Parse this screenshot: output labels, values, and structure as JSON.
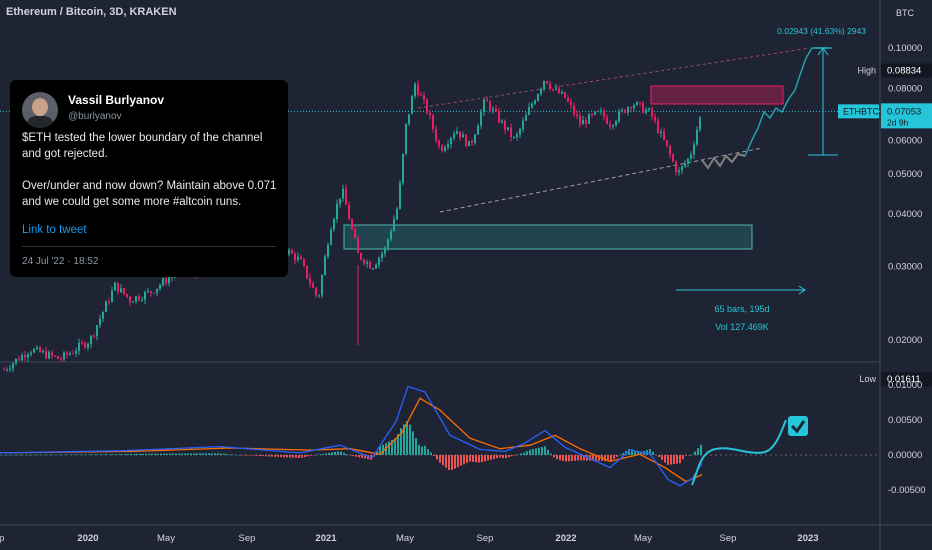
{
  "header": {
    "title": "Ethereum / Bitcoin, 3D, KRAKEN"
  },
  "tweet": {
    "name": "Vassil Burlyanov",
    "handle": "@burlyanov",
    "paragraph1": "$ETH tested the lower boundary of the channel and got rejected.",
    "paragraph2": "Over/under and now down? Maintain above 0.071 and we could get some more #altcoin runs.",
    "link": "Link to tweet",
    "date": "24 Jul '22 · 18:52"
  },
  "chart_data": [
    {
      "type": "candlestick",
      "currency": "BTC",
      "y_ticks": [
        "0.10000",
        "0.08000",
        "0.06000",
        "0.05000",
        "0.04000",
        "0.03000",
        "0.02000"
      ],
      "y_tick_values": [
        0.1,
        0.08,
        0.06,
        0.05,
        0.04,
        0.03,
        0.02
      ],
      "x_ticks": [
        "Sep",
        "2020",
        "May",
        "Sep",
        "2021",
        "May",
        "Sep",
        "2022",
        "May",
        "Sep",
        "2023"
      ],
      "x_tick_bold": [
        false,
        true,
        false,
        false,
        true,
        false,
        false,
        true,
        false,
        false,
        true
      ],
      "high": {
        "label": "High",
        "value": "0.08834"
      },
      "low": {
        "label": "Low",
        "value": "0.01611"
      },
      "last": {
        "symbol": "ETHBTC",
        "value": "0.07053",
        "countdown": "2d 9h"
      },
      "target_label": "0.02943 (41.63%) 2943",
      "range_labels": {
        "bars": "65 bars, 195d",
        "volume": "Vol 127.469K"
      },
      "colors": {
        "up": "#26a69a",
        "down": "#e91e63",
        "projection": "#26a0b0",
        "grey": "#808080"
      },
      "log_scale": true,
      "grid": false
    },
    {
      "type": "macd",
      "y_ticks": [
        "0.01000",
        "0.00500",
        "0.00000",
        "-0.00500"
      ],
      "y_tick_values": [
        0.01,
        0.005,
        0.0,
        -0.005
      ],
      "colors": {
        "macd": "#2962ff",
        "signal": "#ff6d00",
        "hist_up": "#26a69a",
        "hist_down": "#ef5350",
        "projection": "#26c6da"
      }
    }
  ]
}
